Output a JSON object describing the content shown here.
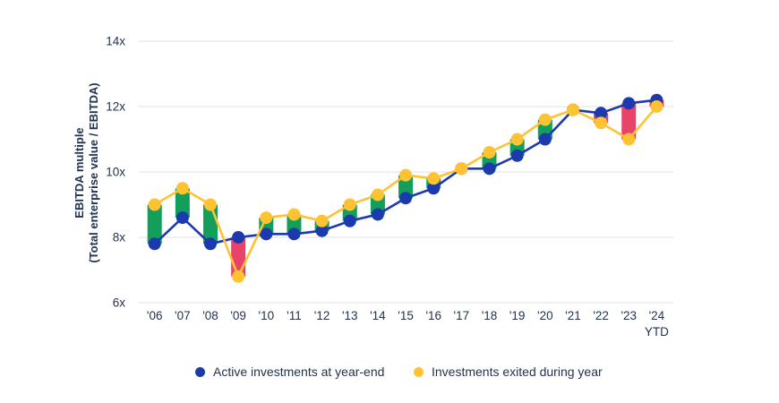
{
  "text_color": "#22334E",
  "chart_data": {
    "type": "line",
    "title": "",
    "ylabel_line1": "EBITDA multiple",
    "ylabel_line2": "(Total enterprise value / EBITDA)",
    "categories": [
      "'06",
      "'07",
      "'08",
      "'09",
      "'10",
      "'11",
      "'12",
      "'13",
      "'14",
      "'15",
      "'16",
      "'17",
      "'18",
      "'19",
      "'20",
      "'21",
      "'22",
      "'23",
      "'24"
    ],
    "last_category_suffix": "YTD",
    "yticks": [
      6,
      8,
      10,
      12,
      14
    ],
    "ytick_suffix": "x",
    "ylim": [
      6,
      14
    ],
    "grid": "horizontal",
    "gridline_color": "#E7E7E7",
    "legend_position": "bottom",
    "series": [
      {
        "name": "Active investments at year-end",
        "color": "#1C3AAE",
        "values": [
          7.8,
          8.6,
          7.8,
          8.0,
          8.1,
          8.1,
          8.2,
          8.5,
          8.7,
          9.2,
          9.5,
          10.1,
          10.1,
          10.5,
          11.0,
          11.9,
          11.8,
          12.1,
          12.2
        ]
      },
      {
        "name": "Investments exited during year",
        "color": "#FFC233",
        "values": [
          9.0,
          9.5,
          9.0,
          6.8,
          8.6,
          8.7,
          8.5,
          9.0,
          9.3,
          9.9,
          9.8,
          10.1,
          10.6,
          11.0,
          11.6,
          11.9,
          11.5,
          11.0,
          12.0
        ]
      }
    ],
    "delta_bars": {
      "rule": "exited minus active",
      "positive_color": "#129F5C",
      "negative_color": "#E84368"
    }
  }
}
